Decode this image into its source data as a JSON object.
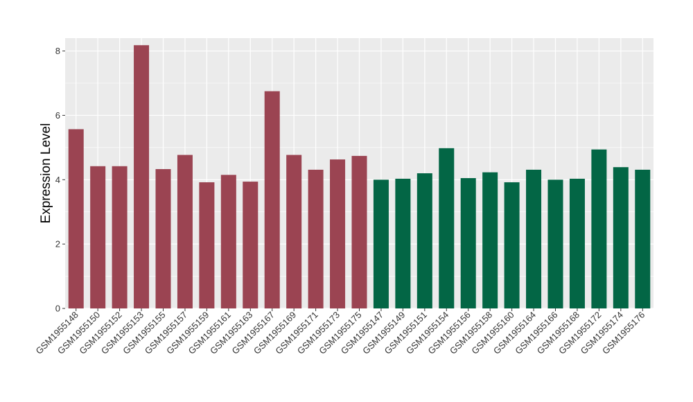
{
  "chart_data": {
    "type": "bar",
    "title": "",
    "xlabel": "",
    "ylabel": "Expression Level",
    "ylim": [
      0,
      8.4
    ],
    "yticks": [
      0,
      2,
      4,
      6,
      8
    ],
    "grid": true,
    "legend": "none",
    "categories": [
      "GSM1955148",
      "GSM1955150",
      "GSM1955152",
      "GSM1955153",
      "GSM1955155",
      "GSM1955157",
      "GSM1955159",
      "GSM1955161",
      "GSM1955163",
      "GSM1955167",
      "GSM1955169",
      "GSM1955171",
      "GSM1955173",
      "GSM1955175",
      "GSM1955147",
      "GSM1955149",
      "GSM1955151",
      "GSM1955154",
      "GSM1955156",
      "GSM1955158",
      "GSM1955160",
      "GSM1955164",
      "GSM1955166",
      "GSM1955168",
      "GSM1955172",
      "GSM1955174",
      "GSM1955176"
    ],
    "values": [
      5.57,
      4.42,
      4.42,
      8.18,
      4.33,
      4.77,
      3.92,
      4.15,
      3.94,
      6.75,
      4.77,
      4.31,
      4.63,
      4.74,
      4.0,
      4.03,
      4.2,
      4.98,
      4.05,
      4.23,
      3.92,
      4.31,
      4.0,
      4.03,
      4.94,
      4.39,
      4.31
    ],
    "groups": [
      1,
      1,
      1,
      1,
      1,
      1,
      1,
      1,
      1,
      1,
      1,
      1,
      1,
      1,
      2,
      2,
      2,
      2,
      2,
      2,
      2,
      2,
      2,
      2,
      2,
      2,
      2
    ],
    "colors": {
      "group1": "#9b4452",
      "group2": "#036645",
      "panel": "#ebebeb",
      "gridline": "#ffffff",
      "tick": "#333333"
    }
  }
}
